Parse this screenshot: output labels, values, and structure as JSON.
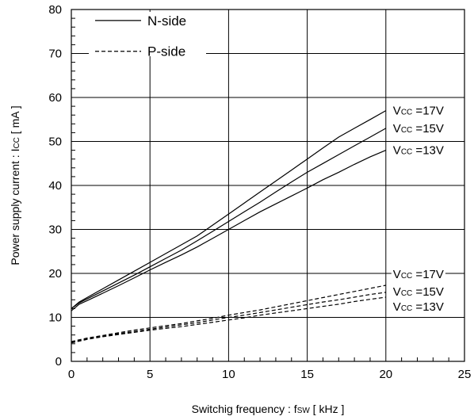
{
  "chart_data": {
    "type": "line",
    "xlabel": {
      "main": "Switchig frequency  :  f",
      "sub": "SW",
      "tail": " [ kHz ]"
    },
    "ylabel": {
      "main": "Power supply current : I",
      "sub": "CC",
      "tail": " [ mA ]"
    },
    "xlim": [
      0,
      25
    ],
    "ylim": [
      0,
      80
    ],
    "xticks": [
      0,
      5,
      10,
      15,
      20,
      25
    ],
    "yticks": [
      0,
      10,
      20,
      30,
      40,
      50,
      60,
      70,
      80
    ],
    "grid": true,
    "legend": {
      "position": "top-left",
      "entries": [
        {
          "label": "N-side",
          "style": "solid"
        },
        {
          "label": "P-side",
          "style": "dashed"
        }
      ]
    },
    "series": [
      {
        "group": "N-side",
        "style": "solid",
        "label": {
          "main": "V",
          "sub": "CC",
          "tail": " =17V"
        },
        "x": [
          0,
          0.5,
          1,
          2,
          3,
          4,
          5,
          6,
          7,
          8,
          9,
          10,
          11,
          12,
          13,
          14,
          15,
          16,
          17,
          18,
          19,
          20
        ],
        "y": [
          12,
          13.5,
          14.5,
          16.5,
          18.5,
          20.5,
          22.5,
          24.5,
          26.5,
          28.5,
          31,
          33.5,
          36,
          38.5,
          41,
          43.5,
          46,
          48.5,
          51,
          53,
          55,
          57
        ]
      },
      {
        "group": "N-side",
        "style": "solid",
        "label": {
          "main": "V",
          "sub": "CC",
          "tail": " =15V"
        },
        "x": [
          0,
          0.5,
          1,
          2,
          3,
          4,
          5,
          6,
          7,
          8,
          9,
          10,
          11,
          12,
          13,
          14,
          15,
          16,
          17,
          18,
          19,
          20
        ],
        "y": [
          12,
          13.3,
          14.2,
          16,
          17.8,
          19.6,
          21.5,
          23.4,
          25.3,
          27.4,
          29.6,
          31.8,
          34,
          36.2,
          38.5,
          40.8,
          43,
          45,
          47,
          49,
          51,
          53
        ]
      },
      {
        "group": "N-side",
        "style": "solid",
        "label": {
          "main": "V",
          "sub": "CC",
          "tail": " =13V"
        },
        "x": [
          0,
          0.5,
          1,
          2,
          3,
          4,
          5,
          6,
          7,
          8,
          9,
          10,
          11,
          12,
          13,
          14,
          15,
          16,
          17,
          18,
          19,
          20
        ],
        "y": [
          11.5,
          13,
          13.8,
          15.5,
          17.2,
          19,
          20.8,
          22.5,
          24.2,
          26,
          28,
          30,
          32,
          34,
          35.8,
          37.6,
          39.4,
          41.3,
          43,
          44.8,
          46.5,
          48
        ]
      },
      {
        "group": "P-side",
        "style": "dashed",
        "label": {
          "main": "V",
          "sub": "CC",
          "tail": " =17V"
        },
        "x": [
          0,
          1,
          2,
          3,
          4,
          5,
          6,
          7,
          8,
          9,
          10,
          11,
          12,
          13,
          14,
          15,
          16,
          17,
          18,
          19,
          20
        ],
        "y": [
          4.5,
          5.3,
          5.9,
          6.5,
          7.1,
          7.6,
          8.1,
          8.6,
          9.2,
          9.8,
          10.5,
          11.1,
          11.7,
          12.4,
          13.1,
          13.8,
          14.5,
          15.2,
          15.9,
          16.6,
          17.3
        ]
      },
      {
        "group": "P-side",
        "style": "dashed",
        "label": {
          "main": "V",
          "sub": "CC",
          "tail": " =15V"
        },
        "x": [
          0,
          1,
          2,
          3,
          4,
          5,
          6,
          7,
          8,
          9,
          10,
          11,
          12,
          13,
          14,
          15,
          16,
          17,
          18,
          19,
          20
        ],
        "y": [
          4.3,
          5.1,
          5.7,
          6.3,
          6.8,
          7.3,
          7.8,
          8.3,
          8.8,
          9.4,
          10,
          10.5,
          11.1,
          11.7,
          12.3,
          12.9,
          13.5,
          14,
          14.6,
          15.2,
          15.7
        ]
      },
      {
        "group": "P-side",
        "style": "dashed",
        "label": {
          "main": "V",
          "sub": "CC",
          "tail": " =13V"
        },
        "x": [
          0,
          1,
          2,
          3,
          4,
          5,
          6,
          7,
          8,
          9,
          10,
          11,
          12,
          13,
          14,
          15,
          16,
          17,
          18,
          19,
          20
        ],
        "y": [
          4.2,
          5,
          5.6,
          6.1,
          6.6,
          7.1,
          7.5,
          7.9,
          8.4,
          8.9,
          9.4,
          9.9,
          10.5,
          11,
          11.5,
          12,
          12.5,
          13,
          13.6,
          14.1,
          14.6
        ]
      }
    ]
  }
}
